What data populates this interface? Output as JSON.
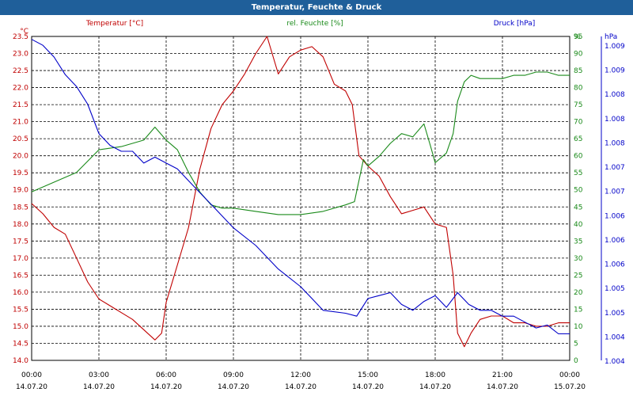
{
  "title": "Temperatur, Feuchte & Druck",
  "colors": {
    "temperature": "#c00000",
    "humidity": "#1a8a1a",
    "pressure": "#0000c8",
    "titlebar": "#1f5f9a"
  },
  "chart_data": {
    "type": "line",
    "title": "Temperatur, Feuchte & Druck",
    "grid": true,
    "x_ticks": [
      {
        "time": "00:00",
        "date": "14.07.20"
      },
      {
        "time": "03:00",
        "date": "14.07.20"
      },
      {
        "time": "06:00",
        "date": "14.07.20"
      },
      {
        "time": "09:00",
        "date": "14.07.20"
      },
      {
        "time": "12:00",
        "date": "14.07.20"
      },
      {
        "time": "15:00",
        "date": "14.07.20"
      },
      {
        "time": "18:00",
        "date": "14.07.20"
      },
      {
        "time": "21:00",
        "date": "14.07.20"
      },
      {
        "time": "00:00",
        "date": "15.07.20"
      }
    ],
    "x_range_hours": [
      0,
      24
    ],
    "axes": {
      "temperature": {
        "label": "Temperatur [°C]",
        "unit": "°C",
        "range": [
          14.0,
          23.5
        ],
        "ticks": [
          "23.5",
          "23.0",
          "22.5",
          "22.0",
          "21.5",
          "21.0",
          "20.5",
          "20.0",
          "19.5",
          "19.0",
          "18.5",
          "18.0",
          "17.5",
          "17.0",
          "16.5",
          "16.0",
          "15.5",
          "15.0",
          "14.5",
          "14.0"
        ]
      },
      "humidity": {
        "label": "rel. Feuchte [%]",
        "unit": "%",
        "range": [
          0,
          100
        ],
        "ticks": [
          "100",
          "95",
          "90",
          "85",
          "80",
          "75",
          "70",
          "65",
          "60",
          "55",
          "50",
          "45",
          "40",
          "35",
          "30",
          "25",
          "20",
          "15",
          "10",
          "5",
          "0"
        ]
      },
      "pressure": {
        "label": "Druck [hPa]",
        "unit": "hPa",
        "range": [
          1003.75,
          1009.25
        ],
        "ticks": [
          "1.009",
          "1.009",
          "1.008",
          "1.008",
          "1.008",
          "1.007",
          "1.007",
          "1.006",
          "1.006",
          "1.006",
          "1.005",
          "1.005",
          "1.004",
          "1.004"
        ]
      }
    },
    "series": [
      {
        "name": "Temperatur [°C]",
        "axis": "temperature",
        "points": [
          [
            0,
            18.6
          ],
          [
            0.5,
            18.3
          ],
          [
            1,
            17.9
          ],
          [
            1.5,
            17.7
          ],
          [
            2,
            17.0
          ],
          [
            2.5,
            16.3
          ],
          [
            3,
            15.8
          ],
          [
            3.5,
            15.6
          ],
          [
            4,
            15.4
          ],
          [
            4.5,
            15.2
          ],
          [
            5,
            14.9
          ],
          [
            5.5,
            14.6
          ],
          [
            5.8,
            14.8
          ],
          [
            6,
            15.7
          ],
          [
            6.5,
            16.8
          ],
          [
            7,
            17.9
          ],
          [
            7.5,
            19.6
          ],
          [
            8,
            20.8
          ],
          [
            8.5,
            21.5
          ],
          [
            9,
            21.9
          ],
          [
            9.5,
            22.4
          ],
          [
            10,
            23.0
          ],
          [
            10.5,
            23.5
          ],
          [
            11,
            22.4
          ],
          [
            11.5,
            22.9
          ],
          [
            12,
            23.1
          ],
          [
            12.5,
            23.2
          ],
          [
            13,
            22.9
          ],
          [
            13.5,
            22.1
          ],
          [
            14,
            21.9
          ],
          [
            14.3,
            21.5
          ],
          [
            14.6,
            20.0
          ],
          [
            15,
            19.7
          ],
          [
            15.5,
            19.4
          ],
          [
            16,
            18.8
          ],
          [
            16.5,
            18.3
          ],
          [
            17,
            18.4
          ],
          [
            17.5,
            18.5
          ],
          [
            18,
            18.0
          ],
          [
            18.5,
            17.9
          ],
          [
            18.8,
            16.5
          ],
          [
            19,
            14.8
          ],
          [
            19.3,
            14.4
          ],
          [
            19.6,
            14.8
          ],
          [
            20,
            15.2
          ],
          [
            20.5,
            15.3
          ],
          [
            21,
            15.3
          ],
          [
            21.5,
            15.1
          ],
          [
            22,
            15.1
          ],
          [
            22.5,
            15.0
          ],
          [
            23,
            15.0
          ],
          [
            23.5,
            15.1
          ],
          [
            24,
            15.1
          ]
        ]
      },
      {
        "name": "rel. Feuchte [%]",
        "axis": "humidity",
        "points": [
          [
            0,
            52
          ],
          [
            1,
            55
          ],
          [
            2,
            58
          ],
          [
            3,
            65
          ],
          [
            4,
            66
          ],
          [
            4.5,
            67
          ],
          [
            5,
            68
          ],
          [
            5.5,
            72
          ],
          [
            6,
            68
          ],
          [
            6.5,
            65
          ],
          [
            7,
            58
          ],
          [
            7.5,
            52
          ],
          [
            8,
            48
          ],
          [
            8.5,
            47
          ],
          [
            9,
            47
          ],
          [
            10,
            46
          ],
          [
            11,
            45
          ],
          [
            12,
            45
          ],
          [
            13,
            46
          ],
          [
            14,
            48
          ],
          [
            14.4,
            49
          ],
          [
            14.8,
            62
          ],
          [
            15,
            60
          ],
          [
            15.5,
            63
          ],
          [
            16,
            67
          ],
          [
            16.5,
            70
          ],
          [
            17,
            69
          ],
          [
            17.5,
            73
          ],
          [
            17.8,
            66
          ],
          [
            18,
            61
          ],
          [
            18.5,
            64
          ],
          [
            18.8,
            70
          ],
          [
            19,
            80
          ],
          [
            19.3,
            86
          ],
          [
            19.6,
            88
          ],
          [
            20,
            87
          ],
          [
            21,
            87
          ],
          [
            21.5,
            88
          ],
          [
            22,
            88
          ],
          [
            22.5,
            89
          ],
          [
            23,
            89
          ],
          [
            23.5,
            88
          ],
          [
            24,
            88
          ]
        ]
      },
      {
        "name": "Druck [hPa]",
        "axis": "pressure",
        "points": [
          [
            0,
            1009.2
          ],
          [
            0.5,
            1009.1
          ],
          [
            1,
            1008.9
          ],
          [
            1.5,
            1008.6
          ],
          [
            2,
            1008.4
          ],
          [
            2.5,
            1008.1
          ],
          [
            3,
            1007.6
          ],
          [
            3.5,
            1007.4
          ],
          [
            4,
            1007.3
          ],
          [
            4.5,
            1007.3
          ],
          [
            5,
            1007.1
          ],
          [
            5.5,
            1007.2
          ],
          [
            6,
            1007.1
          ],
          [
            6.5,
            1007.0
          ],
          [
            7,
            1006.8
          ],
          [
            7.5,
            1006.6
          ],
          [
            8,
            1006.4
          ],
          [
            8.5,
            1006.2
          ],
          [
            9,
            1006.0
          ],
          [
            10,
            1005.7
          ],
          [
            11,
            1005.3
          ],
          [
            12,
            1005.0
          ],
          [
            12.5,
            1004.8
          ],
          [
            13,
            1004.6
          ],
          [
            14,
            1004.55
          ],
          [
            14.5,
            1004.5
          ],
          [
            15,
            1004.8
          ],
          [
            15.5,
            1004.85
          ],
          [
            16,
            1004.9
          ],
          [
            16.5,
            1004.7
          ],
          [
            17,
            1004.6
          ],
          [
            17.5,
            1004.75
          ],
          [
            18,
            1004.85
          ],
          [
            18.5,
            1004.65
          ],
          [
            19,
            1004.9
          ],
          [
            19.5,
            1004.7
          ],
          [
            20,
            1004.6
          ],
          [
            20.5,
            1004.6
          ],
          [
            21,
            1004.5
          ],
          [
            21.5,
            1004.5
          ],
          [
            22,
            1004.4
          ],
          [
            22.5,
            1004.3
          ],
          [
            23,
            1004.35
          ],
          [
            23.5,
            1004.2
          ],
          [
            24,
            1004.2
          ]
        ]
      }
    ]
  }
}
